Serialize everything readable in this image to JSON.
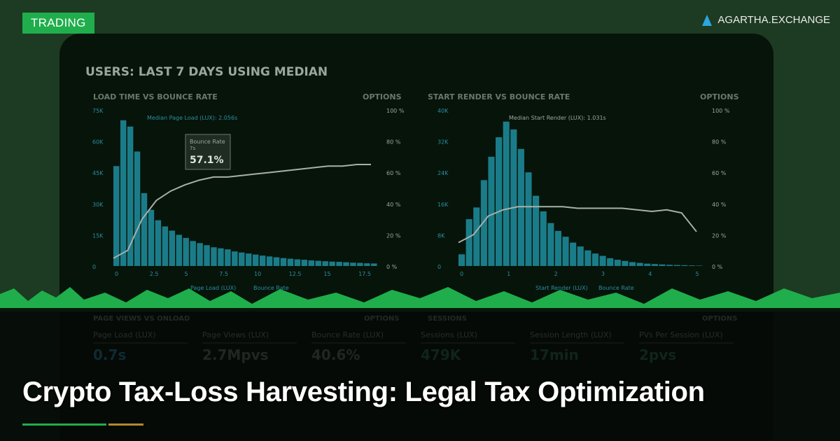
{
  "badge": "TRADING",
  "brand": {
    "name": "AGARTHA.EXCHANGE",
    "icon": "triangle-logo-icon"
  },
  "title": "Crypto Tax-Loss Harvesting: Legal Tax Optimization",
  "colors": {
    "accent": "#1fae4b",
    "gold": "#b08a2e",
    "bar": "#1f8ea0"
  },
  "dashboard": {
    "heading": "USERS: LAST 7 DAYS USING MEDIAN",
    "left": {
      "title": "LOAD TIME VS BOUNCE RATE",
      "options": "OPTIONS",
      "median": "Median Page Load (LUX): 2.056s",
      "tooltip_label": "Bounce Rate",
      "tooltip_sub": "7s",
      "tooltip_value": "57.1%",
      "yticks": [
        "75K",
        "60K",
        "45K",
        "30K",
        "15K",
        "0"
      ],
      "y2ticks": [
        "100 %",
        "80 %",
        "60 %",
        "40 %",
        "20 %",
        "0 %"
      ],
      "xticks": [
        "0",
        "2.5",
        "5",
        "7.5",
        "10",
        "12.5",
        "15",
        "17.5"
      ],
      "legend": [
        "Page Load (LUX)",
        "Bounce Rate"
      ]
    },
    "right": {
      "title": "START RENDER VS BOUNCE RATE",
      "options": "OPTIONS",
      "median": "Median Start Render (LUX): 1.031s",
      "yticks": [
        "40K",
        "32K",
        "24K",
        "16K",
        "8K",
        "0"
      ],
      "y2ticks": [
        "100 %",
        "80 %",
        "60 %",
        "40 %",
        "20 %",
        "0 %"
      ],
      "xticks": [
        "0",
        "1",
        "2",
        "3",
        "4",
        "5"
      ],
      "legend": [
        "Start Render (LUX)",
        "Bounce Rate"
      ]
    },
    "bottom": {
      "left_title": "PAGE VIEWS VS ONLOAD",
      "right_title": "SESSIONS",
      "options": "OPTIONS",
      "metrics": [
        {
          "label": "Page Load (LUX)",
          "value": "0.7s"
        },
        {
          "label": "Page Views (LUX)",
          "value": "2.7Mpvs"
        },
        {
          "label": "Bounce Rate (LUX)",
          "value": "40.6%"
        },
        {
          "label": "Sessions (LUX)",
          "value": "479K"
        },
        {
          "label": "Session Length (LUX)",
          "value": "17min"
        },
        {
          "label": "PVs Per Session (LUX)",
          "value": "2pvs"
        }
      ]
    }
  },
  "chart_data": [
    {
      "type": "bar",
      "values": [
        48,
        70,
        67,
        55,
        35,
        27,
        22,
        19,
        17,
        15,
        13.5,
        12,
        11,
        10,
        9,
        8.5,
        8,
        7,
        6.5,
        6,
        5.5,
        5,
        4.6,
        4.2,
        3.8,
        3.5,
        3.2,
        3,
        2.7,
        2.5,
        2.3,
        2.1,
        2,
        1.8,
        1.6,
        1.5,
        1.3,
        1.2
      ],
      "ylim": [
        0,
        75
      ],
      "line": [
        5,
        10,
        30,
        42,
        48,
        52,
        55,
        57,
        57,
        58,
        59,
        60,
        61,
        62,
        63,
        64,
        64,
        65,
        65
      ],
      "y2lim": [
        0,
        100
      ]
    },
    {
      "type": "bar",
      "values": [
        3,
        12,
        15,
        22,
        28,
        33,
        37,
        35,
        30,
        24,
        18,
        14,
        11,
        9,
        7.5,
        6,
        5,
        4,
        3.2,
        2.6,
        2,
        1.6,
        1.3,
        1,
        0.8,
        0.6,
        0.5,
        0.4,
        0.3,
        0.25,
        0.2,
        0.15,
        0.1
      ],
      "ylim": [
        0,
        40
      ],
      "line": [
        15,
        20,
        32,
        36,
        38,
        38,
        38,
        38,
        37,
        37,
        37,
        37,
        36,
        35,
        36,
        34,
        22
      ],
      "y2lim": [
        0,
        100
      ]
    }
  ]
}
